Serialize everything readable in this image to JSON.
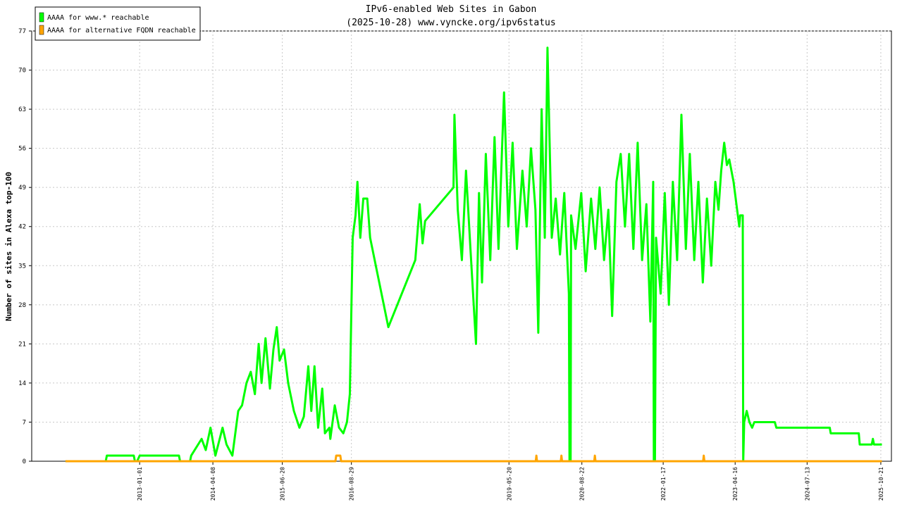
{
  "chart_data": {
    "type": "line",
    "title": "IPv6-enabled Web Sites in Gabon",
    "subtitle": "(2025-10-28) www.vyncke.org/ipv6status",
    "y_label": "Number of sites in Alexa top-100",
    "xlim": [
      "2011-02-20",
      "2025-12-27"
    ],
    "xticks": [
      "2013-01-01",
      "2014-04-08",
      "2015-06-20",
      "2016-08-29",
      "2019-05-20",
      "2020-08-22",
      "2022-01-17",
      "2023-04-16",
      "2024-07-13",
      "2025-10-21"
    ],
    "ylim": [
      0,
      77
    ],
    "yticks": [
      0,
      7,
      14,
      21,
      28,
      35,
      42,
      49,
      56,
      63,
      70,
      77
    ],
    "grid": true,
    "legend": "top-left",
    "series": [
      {
        "name": "AAAA for www.* reachable",
        "color": "#00ff00",
        "x": [
          "2011-09-21",
          "2012-06-01",
          "2012-06-08",
          "2012-11-25",
          "2012-12-02",
          "2012-12-16",
          "2013-01-01",
          "2013-09-06",
          "2013-09-13",
          "2013-11-15",
          "2013-11-22",
          "2014-01-27",
          "2014-02-22",
          "2014-03-24",
          "2014-04-24",
          "2014-06-08",
          "2014-07-03",
          "2014-08-09",
          "2014-09-15",
          "2014-10-09",
          "2014-11-06",
          "2014-12-03",
          "2014-12-29",
          "2015-01-22",
          "2015-02-09",
          "2015-03-06",
          "2015-04-03",
          "2015-04-25",
          "2015-05-16",
          "2015-06-03",
          "2015-07-01",
          "2015-07-27",
          "2015-09-01",
          "2015-10-06",
          "2015-11-03",
          "2015-12-01",
          "2015-12-20",
          "2016-01-09",
          "2016-02-01",
          "2016-02-27",
          "2016-03-15",
          "2016-04-12",
          "2016-04-18",
          "2016-05-16",
          "2016-06-12",
          "2016-07-09",
          "2016-08-01",
          "2016-08-19",
          "2016-09-06",
          "2016-09-24",
          "2016-10-06",
          "2016-10-24",
          "2016-11-12",
          "2016-12-07",
          "2016-12-25",
          "2017-04-19",
          "2017-10-06",
          "2017-11-03",
          "2017-11-21",
          "2017-12-07",
          "2018-06-04",
          "2018-06-10",
          "2018-07-01",
          "2018-07-27",
          "2018-08-22",
          "2018-09-19",
          "2018-10-24",
          "2018-11-12",
          "2018-12-01",
          "2018-12-25",
          "2019-01-22",
          "2019-02-18",
          "2019-03-15",
          "2019-04-19",
          "2019-05-16",
          "2019-06-12",
          "2019-07-09",
          "2019-08-13",
          "2019-09-09",
          "2019-10-06",
          "2019-11-03",
          "2019-11-21",
          "2019-12-12",
          "2020-01-01",
          "2020-01-18",
          "2020-02-14",
          "2020-03-10",
          "2020-04-06",
          "2020-05-03",
          "2020-06-01",
          "2020-06-05",
          "2020-06-12",
          "2020-06-15",
          "2020-07-13",
          "2020-08-18",
          "2020-09-15",
          "2020-10-19",
          "2020-11-15",
          "2020-12-12",
          "2021-01-09",
          "2021-02-05",
          "2021-03-01",
          "2021-03-28",
          "2021-04-24",
          "2021-05-21",
          "2021-06-16",
          "2021-07-13",
          "2021-08-09",
          "2021-09-06",
          "2021-10-03",
          "2021-10-28",
          "2021-11-15",
          "2021-11-19",
          "2021-11-26",
          "2021-12-03",
          "2022-01-01",
          "2022-01-27",
          "2022-02-22",
          "2022-03-19",
          "2022-04-15",
          "2022-05-12",
          "2022-06-09",
          "2022-07-04",
          "2022-08-01",
          "2022-08-27",
          "2022-09-24",
          "2022-10-20",
          "2022-11-16",
          "2022-12-12",
          "2023-01-01",
          "2023-01-18",
          "2023-02-06",
          "2023-02-23",
          "2023-03-10",
          "2023-04-06",
          "2023-04-24",
          "2023-05-12",
          "2023-05-18",
          "2023-06-03",
          "2023-06-06",
          "2023-06-12",
          "2023-06-28",
          "2023-07-15",
          "2023-08-01",
          "2023-08-15",
          "2023-12-22",
          "2024-01-01",
          "2024-12-03",
          "2024-12-09",
          "2025-06-04",
          "2025-06-10",
          "2025-08-25",
          "2025-09-01",
          "2025-09-08",
          "2025-10-28"
        ],
        "values": [
          0,
          0,
          1,
          1,
          0,
          0,
          1,
          1,
          0,
          0,
          1,
          4,
          2,
          6,
          1,
          6,
          3,
          1,
          9,
          10,
          14,
          16,
          12,
          21,
          14,
          22,
          13,
          20,
          24,
          18,
          20,
          14,
          9,
          6,
          8,
          17,
          9,
          17,
          6,
          13,
          5,
          6,
          4,
          10,
          6,
          5,
          7,
          12,
          40,
          44,
          50,
          40,
          47,
          47,
          40,
          24,
          36,
          46,
          39,
          43,
          49,
          62,
          45,
          36,
          52,
          38,
          21,
          48,
          32,
          55,
          36,
          58,
          38,
          66,
          42,
          57,
          38,
          52,
          42,
          56,
          45,
          23,
          63,
          40,
          74,
          40,
          47,
          37,
          48,
          30,
          0,
          0,
          44,
          38,
          48,
          34,
          47,
          38,
          49,
          36,
          45,
          26,
          50,
          55,
          42,
          55,
          38,
          57,
          36,
          46,
          25,
          50,
          0,
          0,
          40,
          30,
          48,
          28,
          50,
          36,
          62,
          38,
          55,
          36,
          50,
          32,
          47,
          35,
          50,
          45,
          52,
          57,
          53,
          54,
          50,
          46,
          42,
          44,
          44,
          0,
          7,
          9,
          7,
          6,
          7,
          7,
          6,
          6,
          5,
          5,
          3,
          3,
          4,
          3,
          3
        ]
      },
      {
        "name": "AAAA for alternative FQDN reachable",
        "color": "#ffa500",
        "x": [
          "2011-09-21",
          "2016-05-20",
          "2016-05-25",
          "2016-06-20",
          "2016-06-25",
          "2019-11-05",
          "2019-11-09",
          "2019-11-13",
          "2020-04-11",
          "2020-04-15",
          "2020-04-19",
          "2020-11-08",
          "2020-11-12",
          "2020-11-16",
          "2022-09-26",
          "2022-09-30",
          "2022-10-04",
          "2025-10-28"
        ],
        "values": [
          0,
          0,
          1,
          1,
          0,
          0,
          1,
          0,
          0,
          1,
          0,
          0,
          1,
          0,
          0,
          1,
          0,
          0
        ]
      }
    ]
  }
}
